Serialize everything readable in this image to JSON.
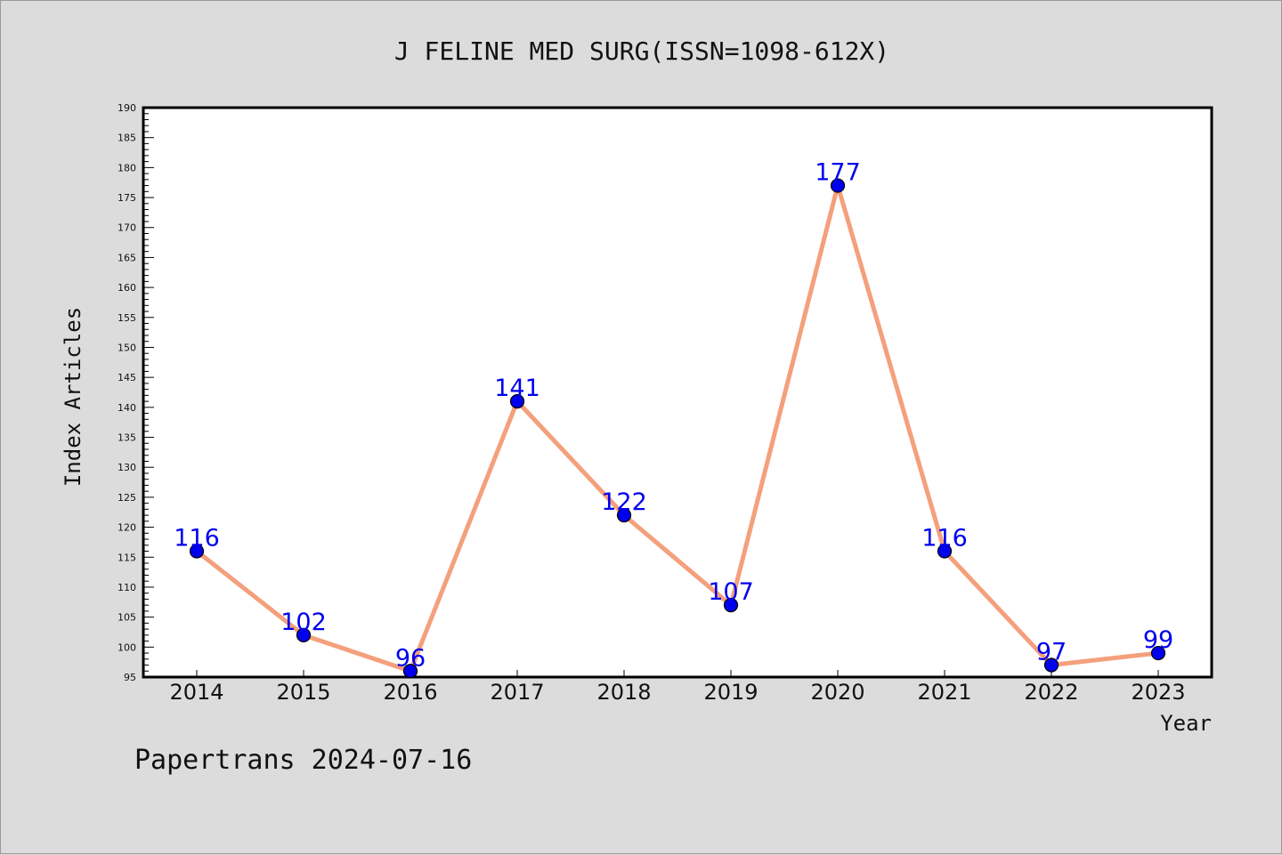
{
  "chart_data": {
    "type": "line",
    "title": "J FELINE MED SURG(ISSN=1098-612X)",
    "xlabel": "Year",
    "ylabel": "Index Articles",
    "categories": [
      "2014",
      "2015",
      "2016",
      "2017",
      "2018",
      "2019",
      "2020",
      "2021",
      "2022",
      "2023"
    ],
    "values": [
      116,
      102,
      96,
      141,
      122,
      107,
      177,
      116,
      97,
      99
    ],
    "ylim": [
      95,
      190
    ],
    "ytick_step": 5,
    "grid": false,
    "legend": "none",
    "line_color": "#f4a07c",
    "marker_color": "#0000ee",
    "label_color": "#0000ee"
  },
  "footer": {
    "credit": "Papertrans 2024-07-16"
  }
}
